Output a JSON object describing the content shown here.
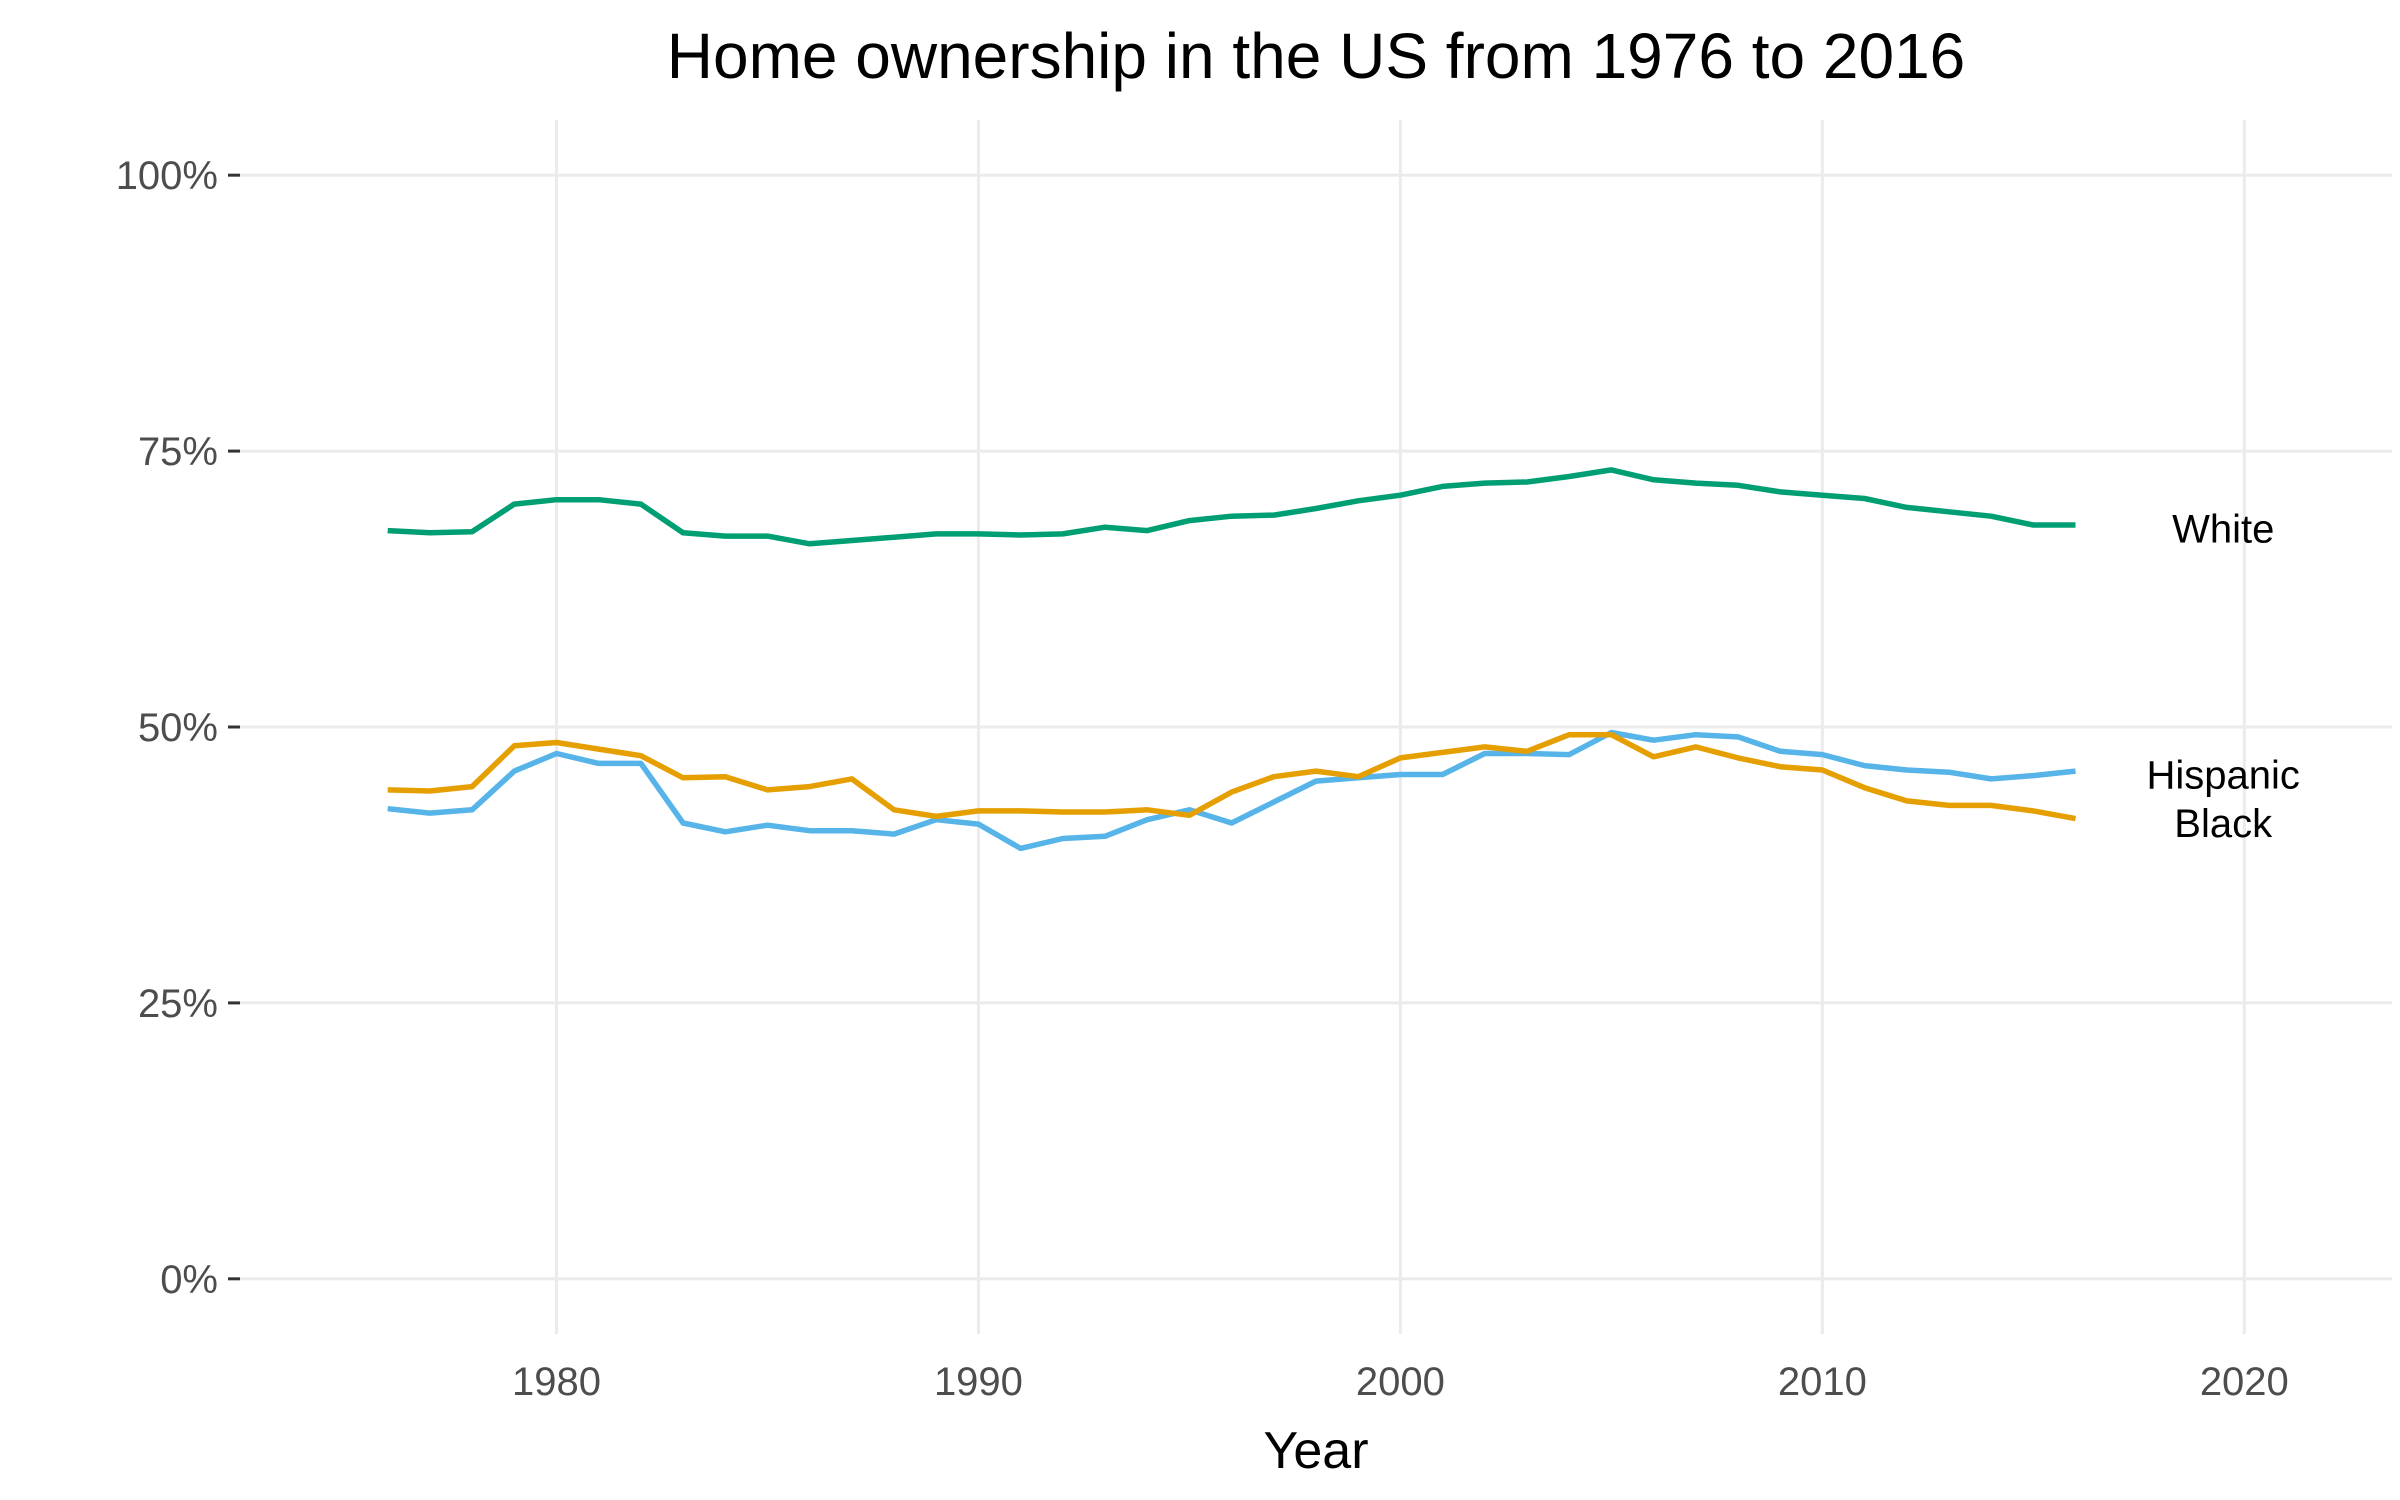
{
  "chart_data": {
    "type": "line",
    "title": "Home ownership in the US from 1976 to 2016",
    "xlabel": "Year",
    "ylabel": "",
    "xlim": [
      1972.5,
      2023.5
    ],
    "ylim": [
      -5,
      105
    ],
    "grid": true,
    "legend": "direct labels at right",
    "x_ticks": [
      {
        "value": 1980,
        "label": "1980"
      },
      {
        "value": 1990,
        "label": "1990"
      },
      {
        "value": 2000,
        "label": "2000"
      },
      {
        "value": 2010,
        "label": "2010"
      },
      {
        "value": 2020,
        "label": "2020"
      }
    ],
    "y_ticks": [
      {
        "value": 0,
        "label": "0%"
      },
      {
        "value": 25,
        "label": "25%"
      },
      {
        "value": 50,
        "label": "50%"
      },
      {
        "value": 75,
        "label": "75%"
      },
      {
        "value": 100,
        "label": "100%"
      }
    ],
    "x": [
      1976,
      1977,
      1978,
      1979,
      1980,
      1981,
      1982,
      1983,
      1984,
      1985,
      1986,
      1987,
      1988,
      1989,
      1990,
      1991,
      1992,
      1993,
      1994,
      1995,
      1996,
      1997,
      1998,
      1999,
      2000,
      2001,
      2002,
      2003,
      2004,
      2005,
      2006,
      2007,
      2008,
      2009,
      2010,
      2011,
      2012,
      2013,
      2014,
      2015,
      2016
    ],
    "series": [
      {
        "name": "White",
        "color": "#009E73",
        "label_y": 68,
        "values": [
          67.8,
          67.6,
          67.7,
          70.2,
          70.6,
          70.6,
          70.2,
          67.6,
          67.3,
          67.3,
          66.6,
          66.9,
          67.2,
          67.5,
          67.5,
          67.4,
          67.5,
          68.1,
          67.8,
          68.7,
          69.1,
          69.2,
          69.8,
          70.5,
          71.0,
          71.8,
          72.1,
          72.2,
          72.7,
          73.3,
          72.4,
          72.1,
          71.9,
          71.3,
          71.0,
          70.7,
          69.9,
          69.5,
          69.1,
          68.3,
          68.3
        ]
      },
      {
        "name": "Hispanic",
        "color": "#56B4E9",
        "label_y": 45.7,
        "values": [
          42.6,
          42.2,
          42.5,
          46.0,
          47.6,
          46.7,
          46.7,
          41.3,
          40.5,
          41.1,
          40.6,
          40.6,
          40.3,
          41.6,
          41.2,
          39.0,
          39.9,
          40.1,
          41.6,
          42.5,
          41.3,
          43.2,
          45.1,
          45.4,
          45.7,
          45.7,
          47.6,
          47.6,
          47.5,
          49.5,
          48.8,
          49.3,
          49.1,
          47.8,
          47.5,
          46.5,
          46.1,
          45.9,
          45.3,
          45.6,
          46.0
        ]
      },
      {
        "name": "Black",
        "color": "#E69F00",
        "label_y": 41.3,
        "values": [
          44.3,
          44.2,
          44.6,
          48.3,
          48.6,
          48.0,
          47.4,
          45.4,
          45.5,
          44.3,
          44.6,
          45.3,
          42.5,
          41.9,
          42.4,
          42.4,
          42.3,
          42.3,
          42.5,
          42.0,
          44.1,
          45.5,
          46.0,
          45.5,
          47.2,
          47.7,
          48.2,
          47.8,
          49.3,
          49.3,
          47.3,
          48.2,
          47.2,
          46.4,
          46.1,
          44.5,
          43.3,
          42.9,
          42.9,
          42.4,
          41.7
        ]
      }
    ]
  }
}
